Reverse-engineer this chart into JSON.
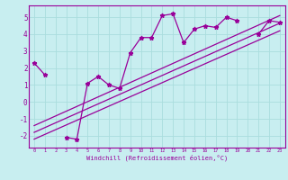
{
  "xlabel": "Windchill (Refroidissement éolien,°C)",
  "bg_color": "#c8eef0",
  "line_color": "#990099",
  "grid_color": "#aadddd",
  "xlim": [
    -0.5,
    23.5
  ],
  "ylim": [
    -2.7,
    5.7
  ],
  "yticks": [
    -2,
    -1,
    0,
    1,
    2,
    3,
    4,
    5
  ],
  "xticks": [
    0,
    1,
    2,
    3,
    4,
    5,
    6,
    7,
    8,
    9,
    10,
    11,
    12,
    13,
    14,
    15,
    16,
    17,
    18,
    19,
    20,
    21,
    22,
    23
  ],
  "data_x": [
    0,
    1,
    2,
    3,
    4,
    5,
    6,
    7,
    8,
    9,
    10,
    11,
    12,
    13,
    14,
    15,
    16,
    17,
    18,
    19,
    20,
    21,
    22,
    23
  ],
  "data_y": [
    2.3,
    1.6,
    null,
    -2.1,
    -2.2,
    1.1,
    1.5,
    1.0,
    0.8,
    2.9,
    3.8,
    3.8,
    5.1,
    5.2,
    3.5,
    4.3,
    4.5,
    4.4,
    5.0,
    4.8,
    null,
    4.0,
    4.8,
    4.7
  ],
  "line1_x": [
    0,
    23
  ],
  "line1_y": [
    -1.8,
    4.65
  ],
  "line2_x": [
    0,
    23
  ],
  "line2_y": [
    -2.2,
    4.2
  ],
  "line3_x": [
    0,
    23
  ],
  "line3_y": [
    -1.4,
    5.1
  ]
}
